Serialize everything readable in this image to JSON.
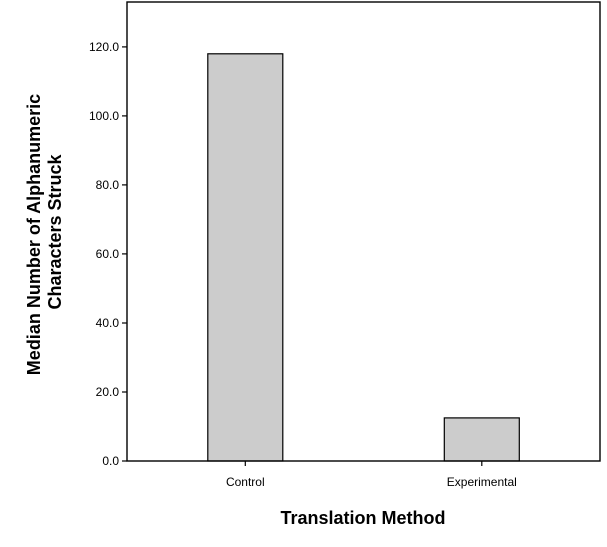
{
  "chart_data": {
    "type": "bar",
    "categories": [
      "Control",
      "Experimental"
    ],
    "values": [
      118.0,
      12.5
    ],
    "title": "",
    "xlabel": "Translation Method",
    "ylabel": "Median Number of Alphanumeric Characters Struck",
    "ylabel_lines": [
      "Median Number of Alphanumeric",
      "Characters Struck"
    ],
    "ylim": [
      0,
      133
    ],
    "yticks": [
      0,
      20,
      40,
      60,
      80,
      100,
      120
    ],
    "ytick_labels": [
      "0.0",
      "20.0",
      "40.0",
      "60.0",
      "80.0",
      "100.0",
      "120.0"
    ],
    "grid": false,
    "colors": {
      "bar_fill": "#cccccc",
      "bar_stroke": "#000000",
      "axis": "#000000",
      "background": "#ffffff"
    }
  }
}
